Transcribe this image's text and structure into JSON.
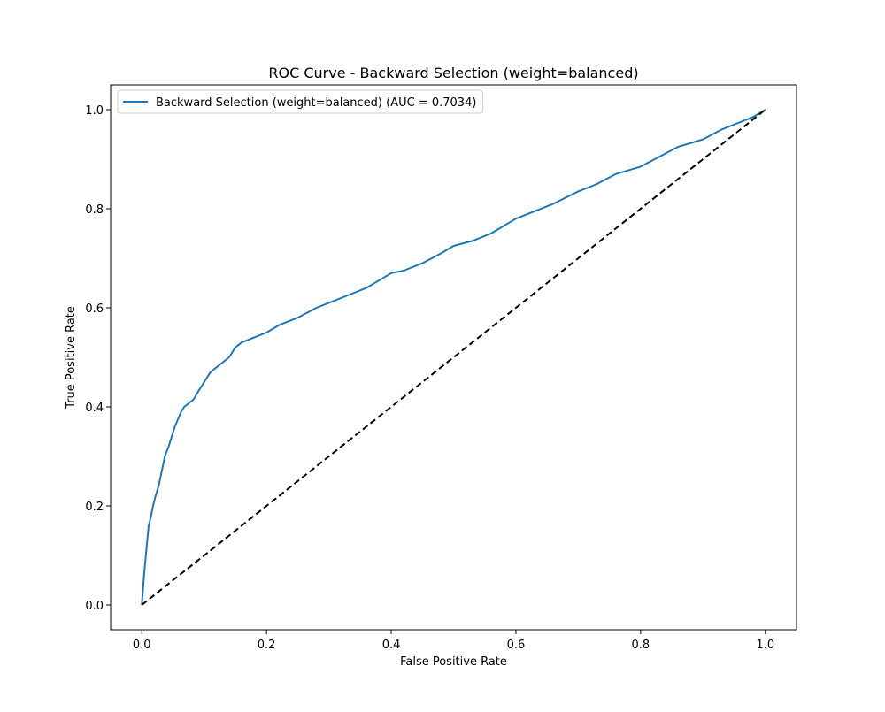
{
  "chart_data": {
    "type": "line",
    "title": "ROC Curve - Backward Selection (weight=balanced)",
    "xlabel": "False Positive Rate",
    "ylabel": "True Positive Rate",
    "xlim": [
      -0.05,
      1.05
    ],
    "ylim": [
      -0.05,
      1.05
    ],
    "x_ticks": [
      0.0,
      0.2,
      0.4,
      0.6,
      0.8,
      1.0
    ],
    "y_ticks": [
      0.0,
      0.2,
      0.4,
      0.6,
      0.8,
      1.0
    ],
    "x_tick_labels": [
      "0.0",
      "0.2",
      "0.4",
      "0.6",
      "0.8",
      "1.0"
    ],
    "y_tick_labels": [
      "0.0",
      "0.2",
      "0.4",
      "0.6",
      "0.8",
      "1.0"
    ],
    "grid": false,
    "legend_position": "upper-left",
    "series": [
      {
        "name": "Backward Selection (weight=balanced) (AUC = 0.7034)",
        "color": "#1f77b4",
        "style": "solid",
        "x": [
          0.0,
          0.003,
          0.005,
          0.008,
          0.011,
          0.014,
          0.018,
          0.022,
          0.027,
          0.032,
          0.037,
          0.043,
          0.048,
          0.053,
          0.058,
          0.063,
          0.068,
          0.073,
          0.078,
          0.083,
          0.09,
          0.1,
          0.11,
          0.12,
          0.13,
          0.14,
          0.15,
          0.16,
          0.17,
          0.18,
          0.19,
          0.2,
          0.22,
          0.25,
          0.28,
          0.3,
          0.33,
          0.36,
          0.38,
          0.4,
          0.42,
          0.45,
          0.48,
          0.5,
          0.53,
          0.56,
          0.58,
          0.6,
          0.63,
          0.66,
          0.7,
          0.73,
          0.76,
          0.8,
          0.83,
          0.86,
          0.9,
          0.93,
          0.96,
          0.98,
          1.0
        ],
        "y": [
          0.0,
          0.05,
          0.08,
          0.12,
          0.16,
          0.175,
          0.2,
          0.22,
          0.24,
          0.27,
          0.3,
          0.32,
          0.34,
          0.36,
          0.375,
          0.39,
          0.4,
          0.405,
          0.41,
          0.415,
          0.43,
          0.45,
          0.47,
          0.48,
          0.49,
          0.5,
          0.52,
          0.53,
          0.535,
          0.54,
          0.545,
          0.55,
          0.565,
          0.58,
          0.6,
          0.61,
          0.625,
          0.64,
          0.655,
          0.67,
          0.675,
          0.69,
          0.71,
          0.725,
          0.735,
          0.75,
          0.765,
          0.78,
          0.795,
          0.81,
          0.835,
          0.85,
          0.87,
          0.885,
          0.905,
          0.925,
          0.94,
          0.96,
          0.975,
          0.985,
          1.0
        ]
      },
      {
        "name": "",
        "color": "#000000",
        "style": "dashed",
        "x": [
          0.0,
          1.0
        ],
        "y": [
          0.0,
          1.0
        ]
      }
    ]
  }
}
